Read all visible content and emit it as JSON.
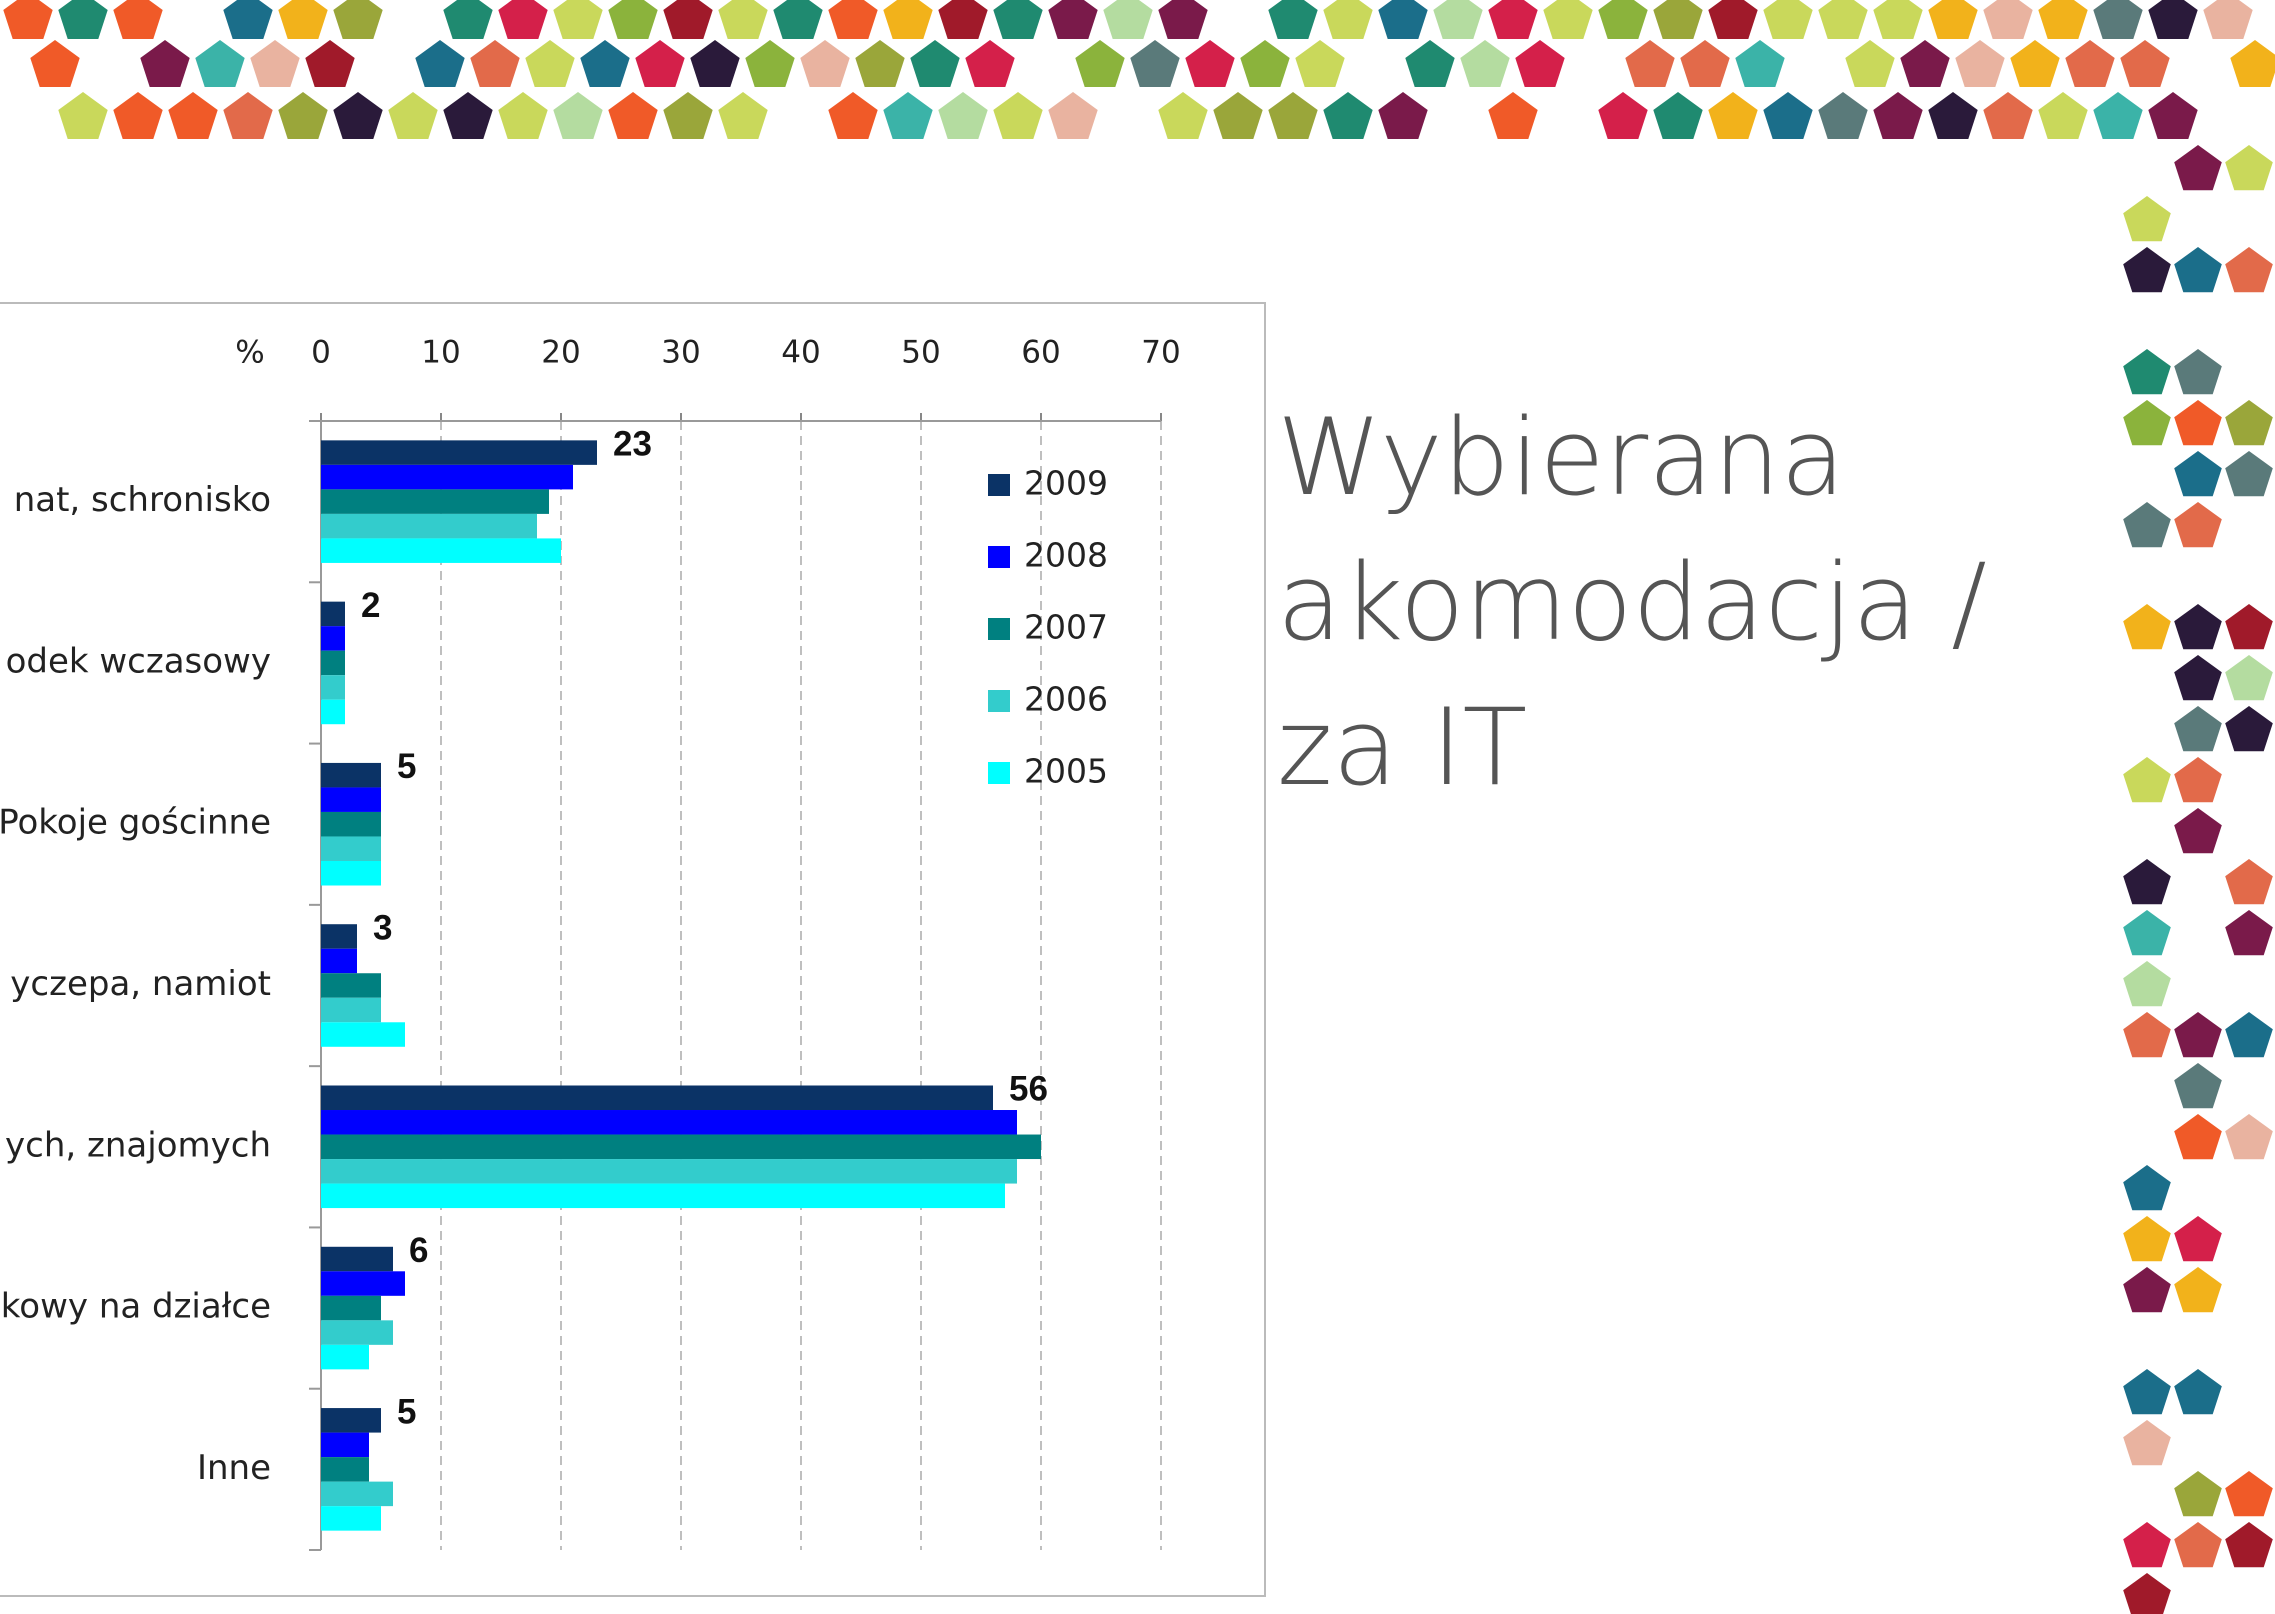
{
  "chart_data": {
    "type": "bar",
    "orientation": "horizontal",
    "title": "Wybierana akomodacja / za IT",
    "x_label": "%",
    "categories": [
      "nat, schronisko",
      "odek wczasowy",
      "Pokoje gościnne",
      "yczepa, namiot",
      "ych, znajomych",
      "kowy na działce",
      "Inne"
    ],
    "series": [
      {
        "name": "2009",
        "color": "#0b3366",
        "values": [
          23,
          2,
          5,
          3,
          56,
          6,
          5
        ]
      },
      {
        "name": "2008",
        "color": "#0000ff",
        "values": [
          21,
          2,
          5,
          3,
          58,
          7,
          4
        ]
      },
      {
        "name": "2007",
        "color": "#008080",
        "values": [
          19,
          2,
          5,
          5,
          60,
          5,
          4
        ]
      },
      {
        "name": "2006",
        "color": "#33cccc",
        "values": [
          18,
          2,
          5,
          5,
          58,
          6,
          6
        ]
      },
      {
        "name": "2005",
        "color": "#00ffff",
        "values": [
          20,
          2,
          5,
          7,
          57,
          4,
          5
        ]
      }
    ],
    "labeled_series": 0,
    "xlim": [
      0,
      70
    ],
    "xticks": [
      0,
      10,
      20,
      30,
      40,
      50,
      60,
      70
    ],
    "grid": true
  }
}
